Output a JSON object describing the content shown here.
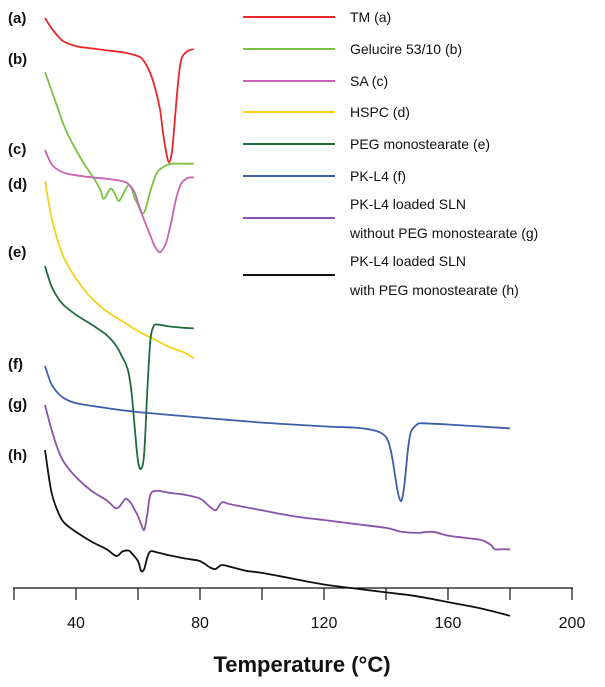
{
  "chart_data": {
    "type": "line",
    "xlabel": "Temperature (°C)",
    "ylabel": "",
    "xlim": [
      20,
      200
    ],
    "xticks": [
      40,
      80,
      120,
      160,
      200
    ],
    "minor_xticks": [
      20,
      60,
      100,
      140,
      180
    ],
    "grid": false,
    "legend_position": "top-right",
    "y_axis": "none (curves stacked with vertical offsets, arbitrary heat-flow units)",
    "series": [
      {
        "key": "a",
        "label": "(a)",
        "name": "TM (a)",
        "color": "#e8262b",
        "x": [
          30,
          32,
          34,
          36,
          40,
          45,
          50,
          55,
          58,
          61,
          63,
          65,
          67,
          68,
          69,
          70,
          71,
          72,
          73,
          74,
          76,
          78
        ],
        "y": [
          0.0,
          -0.25,
          -0.45,
          -0.6,
          -0.72,
          -0.78,
          -0.83,
          -0.88,
          -0.93,
          -1.02,
          -1.25,
          -1.65,
          -2.3,
          -2.9,
          -3.4,
          -3.7,
          -3.4,
          -2.5,
          -1.6,
          -1.05,
          -0.85,
          -0.8
        ]
      },
      {
        "key": "b",
        "label": "(b)",
        "name": "Gelucire 53/10 (b)",
        "color": "#7cc242",
        "x": [
          30,
          32,
          34,
          36,
          38,
          40,
          43,
          46,
          48,
          49,
          51,
          52,
          53,
          54,
          56,
          57,
          58,
          59,
          60,
          61,
          62,
          63,
          64,
          65,
          66,
          67,
          69,
          71,
          74,
          78
        ],
        "y": [
          0.0,
          -0.45,
          -0.9,
          -1.35,
          -1.7,
          -2.0,
          -2.4,
          -2.75,
          -3.05,
          -3.25,
          -3.0,
          -3.05,
          -3.2,
          -3.3,
          -3.0,
          -2.9,
          -3.0,
          -3.25,
          -3.4,
          -3.6,
          -3.6,
          -3.35,
          -3.05,
          -2.8,
          -2.6,
          -2.5,
          -2.4,
          -2.35,
          -2.35,
          -2.35
        ]
      },
      {
        "key": "c",
        "label": "(c)",
        "name": "SA (c)",
        "color": "#c963b5",
        "x": [
          30,
          32,
          34,
          36,
          40,
          45,
          50,
          55,
          57,
          59,
          60,
          62,
          64,
          65,
          66,
          67,
          68,
          69,
          70,
          71,
          72,
          73,
          74,
          76,
          78
        ],
        "y": [
          0.0,
          -0.35,
          -0.5,
          -0.58,
          -0.65,
          -0.7,
          -0.74,
          -0.8,
          -0.88,
          -1.1,
          -1.35,
          -1.8,
          -2.2,
          -2.4,
          -2.55,
          -2.62,
          -2.55,
          -2.4,
          -2.1,
          -1.75,
          -1.35,
          -1.05,
          -0.85,
          -0.72,
          -0.7
        ]
      },
      {
        "key": "d",
        "label": "(d)",
        "name": "HSPC (d)",
        "color": "#f7d11a",
        "x": [
          30,
          32,
          34,
          36,
          40,
          45,
          50,
          55,
          60,
          65,
          70,
          75,
          78
        ],
        "y": [
          0.0,
          -0.9,
          -1.5,
          -1.95,
          -2.5,
          -3.0,
          -3.35,
          -3.6,
          -3.85,
          -4.05,
          -4.25,
          -4.4,
          -4.55
        ]
      },
      {
        "key": "e",
        "label": "(e)",
        "name": "PEG monostearate (e)",
        "color": "#1d6b3e",
        "x": [
          30,
          32,
          34,
          36,
          40,
          45,
          50,
          53,
          55,
          56,
          57,
          58,
          59,
          60,
          61,
          62,
          63,
          64,
          65,
          66,
          68,
          70,
          74,
          78
        ],
        "y": [
          0.0,
          -0.5,
          -0.8,
          -1.0,
          -1.25,
          -1.5,
          -1.78,
          -2.05,
          -2.35,
          -2.5,
          -2.75,
          -3.3,
          -4.2,
          -5.0,
          -5.2,
          -4.8,
          -3.2,
          -1.9,
          -1.55,
          -1.5,
          -1.52,
          -1.55,
          -1.58,
          -1.6
        ]
      },
      {
        "key": "f",
        "label": "(f)",
        "name": "PK-L4 (f)",
        "color": "#3c5fac",
        "x": [
          30,
          32,
          34,
          36,
          40,
          50,
          60,
          80,
          100,
          120,
          130,
          135,
          138,
          140,
          141,
          142,
          143,
          144,
          145,
          146,
          147,
          148,
          150,
          152,
          160,
          170,
          180
        ],
        "y": [
          0.0,
          -0.45,
          -0.68,
          -0.82,
          -0.95,
          -1.08,
          -1.18,
          -1.32,
          -1.45,
          -1.55,
          -1.58,
          -1.63,
          -1.7,
          -1.82,
          -2.0,
          -2.35,
          -2.85,
          -3.3,
          -3.45,
          -3.0,
          -2.2,
          -1.7,
          -1.5,
          -1.47,
          -1.5,
          -1.55,
          -1.6
        ]
      },
      {
        "key": "g",
        "label": "(g)",
        "name": "PK-L4 loaded SLN without PEG monostearate (g)",
        "color": "#8b52a9",
        "x": [
          30,
          32,
          34,
          36,
          40,
          45,
          50,
          53,
          55,
          56,
          57,
          58,
          59,
          60,
          61,
          62,
          63,
          64,
          66,
          70,
          75,
          80,
          83,
          85,
          86,
          87,
          88,
          90,
          100,
          110,
          120,
          130,
          140,
          145,
          150,
          155,
          160,
          165,
          170,
          172,
          174,
          175,
          177,
          180
        ],
        "y": [
          0.0,
          -0.6,
          -1.1,
          -1.45,
          -1.85,
          -2.2,
          -2.45,
          -2.65,
          -2.5,
          -2.4,
          -2.45,
          -2.55,
          -2.7,
          -2.85,
          -3.05,
          -3.2,
          -2.8,
          -2.3,
          -2.2,
          -2.25,
          -2.3,
          -2.4,
          -2.6,
          -2.7,
          -2.6,
          -2.5,
          -2.5,
          -2.55,
          -2.7,
          -2.85,
          -2.95,
          -3.05,
          -3.15,
          -3.25,
          -3.28,
          -3.25,
          -3.35,
          -3.4,
          -3.45,
          -3.5,
          -3.6,
          -3.7,
          -3.7,
          -3.7
        ]
      },
      {
        "key": "h",
        "label": "(h)",
        "name": "PK-L4 loaded SLN with PEG monostearate (h)",
        "color": "#111111",
        "x": [
          30,
          32,
          34,
          36,
          40,
          45,
          50,
          53,
          55,
          57,
          58,
          60,
          61,
          62,
          63,
          64,
          66,
          70,
          75,
          80,
          83,
          85,
          87,
          90,
          95,
          100,
          110,
          120,
          130,
          140,
          150,
          160,
          170,
          180
        ],
        "y": [
          0.0,
          -1.05,
          -1.55,
          -1.85,
          -2.1,
          -2.35,
          -2.55,
          -2.72,
          -2.6,
          -2.58,
          -2.65,
          -2.85,
          -3.1,
          -3.05,
          -2.75,
          -2.6,
          -2.62,
          -2.7,
          -2.78,
          -2.85,
          -3.0,
          -3.05,
          -2.95,
          -3.0,
          -3.1,
          -3.15,
          -3.3,
          -3.45,
          -3.55,
          -3.65,
          -3.75,
          -3.9,
          -4.05,
          -4.25
        ]
      }
    ]
  }
}
